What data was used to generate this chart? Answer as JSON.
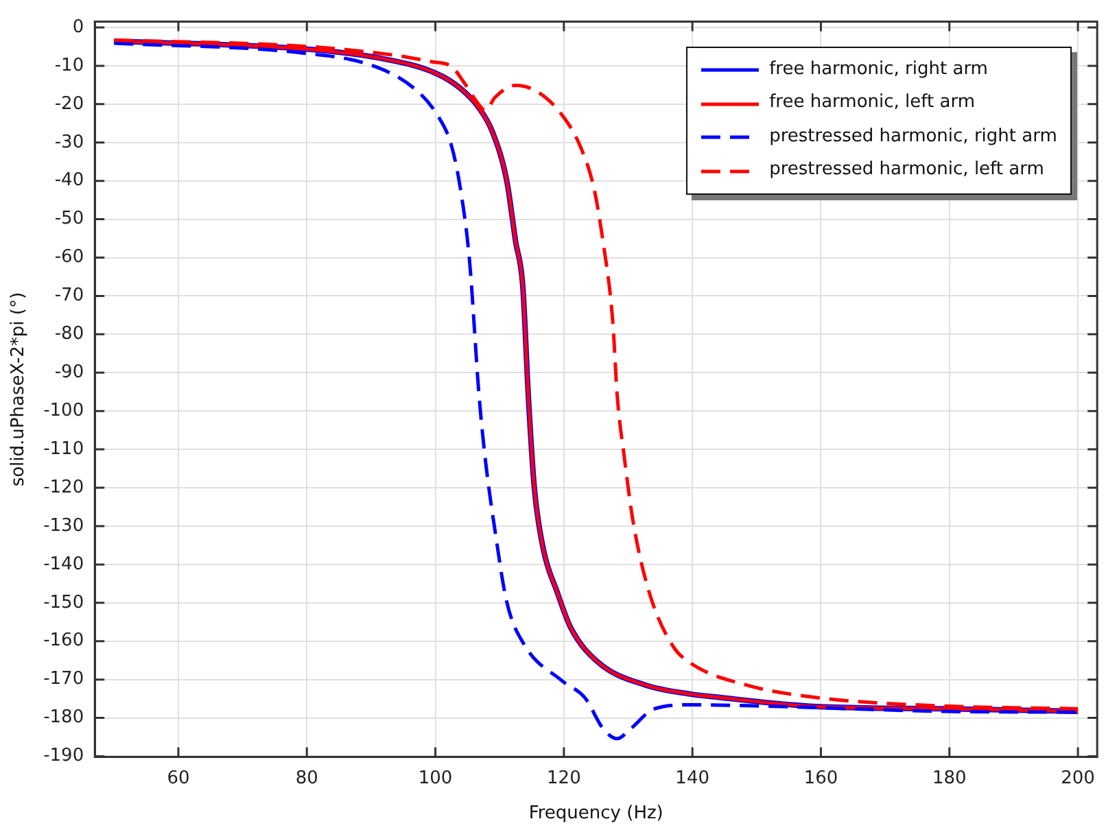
{
  "chart_data": {
    "type": "line",
    "xlabel": "Frequency (Hz)",
    "ylabel": "solid.uPhaseX-2*pi (°)",
    "xlim": [
      47,
      203
    ],
    "ylim": [
      -190.2,
      1.5
    ],
    "xticks": [
      60,
      80,
      100,
      120,
      140,
      160,
      180,
      200
    ],
    "yticks": [
      0,
      -10,
      -20,
      -30,
      -40,
      -50,
      -60,
      -70,
      -80,
      -90,
      -100,
      -110,
      -120,
      -130,
      -140,
      -150,
      -160,
      -170,
      -180,
      -190
    ],
    "grid": true,
    "legend": "top right",
    "marker": "none",
    "series": [
      {
        "name": "free harmonic, right arm",
        "color": "#0000ff",
        "line_style": "solid",
        "x": [
          50,
          79.5,
          91,
          100,
          103.9,
          106.8,
          108.9,
          111.1,
          112.5,
          113.6,
          114.5,
          115.4,
          116.8,
          119,
          121.1,
          125.4,
          132.6,
          139.7,
          143.3,
          159.8,
          179.2,
          200
        ],
        "values": [
          -3.6,
          -5.6,
          -7.9,
          -11.9,
          -15.9,
          -21,
          -27.3,
          -39.9,
          -55.9,
          -67.4,
          -97.1,
          -120,
          -136,
          -147.4,
          -156.6,
          -165.6,
          -171.4,
          -173.8,
          -174.5,
          -177.1,
          -177.6,
          -178.3
        ]
      },
      {
        "name": "free harmonic, left arm",
        "color": "#ff0000",
        "line_style": "solid",
        "x": [
          50,
          79.5,
          91,
          100,
          103.9,
          106.8,
          108.9,
          111.1,
          112.5,
          113.6,
          114.5,
          115.4,
          116.8,
          119,
          121.1,
          125.4,
          132.6,
          139.7,
          143.3,
          159.8,
          179.2,
          200
        ],
        "values": [
          -3.6,
          -5.6,
          -7.9,
          -11.9,
          -15.9,
          -21,
          -27.3,
          -39.9,
          -55.9,
          -67.4,
          -97.1,
          -120,
          -136,
          -147.4,
          -156.6,
          -165.6,
          -171.4,
          -173.8,
          -174.5,
          -177.1,
          -177.6,
          -178.3
        ]
      },
      {
        "name": "prestressed harmonic, right arm",
        "color": "#0000ff",
        "line_style": "dashed",
        "x": [
          50,
          79.5,
          90.3,
          96.7,
          100.3,
          102.5,
          103.9,
          105.3,
          106.8,
          107.8,
          109.3,
          111.1,
          113.9,
          119.7,
          123.3,
          126.1,
          128.3,
          130.4,
          134,
          139.7,
          150.5,
          179.2,
          200
        ],
        "values": [
          -4.1,
          -6.7,
          -10,
          -15.9,
          -22.8,
          -30.8,
          -42.1,
          -60.5,
          -96,
          -113,
          -131.4,
          -149.7,
          -161.1,
          -170.3,
          -174.8,
          -182.8,
          -185.4,
          -182.8,
          -177.7,
          -176.6,
          -176.9,
          -178.3,
          -178.5
        ]
      },
      {
        "name": "prestressed harmonic, left arm",
        "color": "#ff0000",
        "line_style": "dashed",
        "x": [
          50,
          79.5,
          93.9,
          99.6,
          102.5,
          104.6,
          106.4,
          107.8,
          109.3,
          112.5,
          116.1,
          119.7,
          122.5,
          124.7,
          126.1,
          127.6,
          128.3,
          129.4,
          130.8,
          133.3,
          136.9,
          139.7,
          148.3,
          159.8,
          179.2,
          200
        ],
        "values": [
          -3.3,
          -4.9,
          -7.3,
          -9,
          -10.2,
          -14.7,
          -19.3,
          -21.6,
          -18.2,
          -15.1,
          -17,
          -22.8,
          -30.8,
          -42.1,
          -55.9,
          -76.5,
          -96,
          -112,
          -129.1,
          -147.4,
          -161.1,
          -165.7,
          -171.4,
          -174.8,
          -176.9,
          -177.6
        ]
      }
    ]
  }
}
